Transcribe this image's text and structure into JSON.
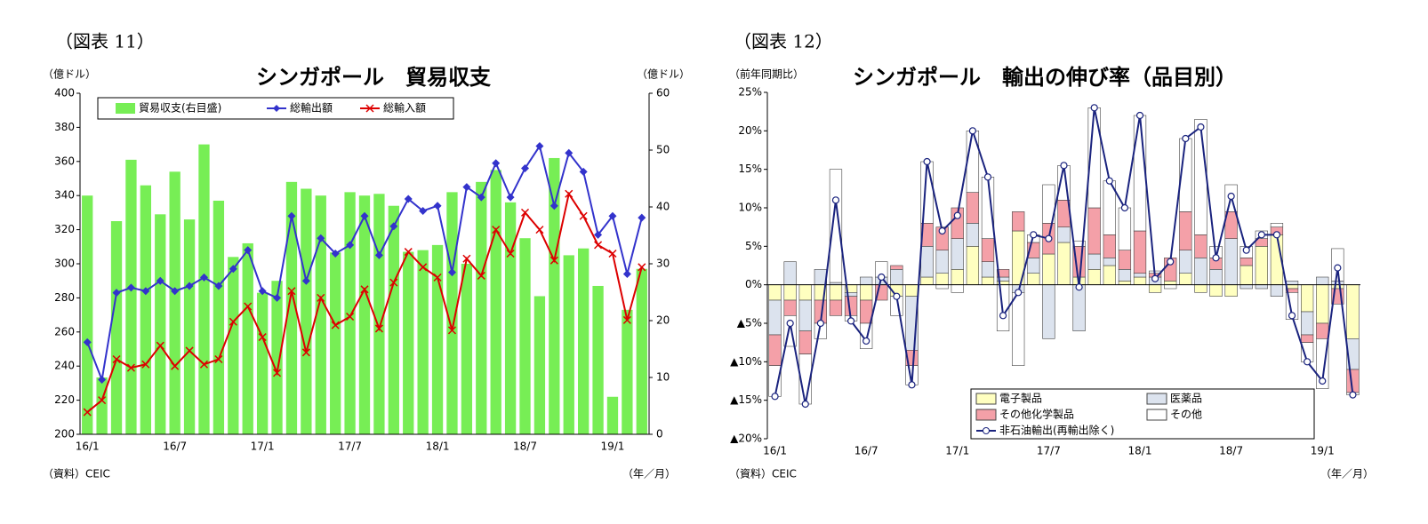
{
  "chart_data": [
    {
      "type": "bar_line",
      "figure_label": "（図表 11）",
      "title": "シンガポール　貿易収支",
      "y_label": "（億ドル）",
      "y2_label": "（億ドル）",
      "x_unit": "（年／月）",
      "source": "（資料）CEIC",
      "categories": [
        "16/1",
        null,
        null,
        null,
        null,
        null,
        "16/7",
        null,
        null,
        null,
        null,
        null,
        "17/1",
        null,
        null,
        null,
        null,
        null,
        "17/7",
        null,
        null,
        null,
        null,
        null,
        "18/1",
        null,
        null,
        null,
        null,
        null,
        "18/7",
        null,
        null,
        null,
        null,
        null,
        "19/1",
        null,
        null
      ],
      "series": [
        {
          "name": "貿易収支(右目盛)",
          "type": "bar",
          "axis": "y2",
          "color": "#77ee55",
          "values": [
            42,
            10,
            37.5,
            48.3,
            43.8,
            38.7,
            46.2,
            37.8,
            51,
            41.1,
            31.2,
            33.6,
            24.9,
            27,
            44.4,
            43.2,
            42,
            32,
            42.6,
            42,
            42.3,
            40.2,
            32.1,
            32.4,
            33.3,
            42.6,
            30,
            44.4,
            46.5,
            40.8,
            34.5,
            24.3,
            48.6,
            31.5,
            32.7,
            26.1,
            6.6,
            21.9,
            29.1
          ]
        },
        {
          "name": "総輸出額",
          "type": "line",
          "color": "#3333cc",
          "marker": "diamond",
          "values": [
            254,
            232,
            283,
            286,
            284,
            290,
            284,
            287,
            292,
            287,
            297,
            308,
            284,
            280,
            328,
            290,
            315,
            306,
            311,
            328,
            305,
            322,
            338,
            331,
            334,
            295,
            345,
            339,
            359,
            339,
            356,
            369,
            334,
            365,
            354,
            317,
            328,
            294,
            327
          ]
        },
        {
          "name": "総輸入額",
          "type": "line",
          "color": "#dd0000",
          "marker": "x",
          "values": [
            213,
            220,
            244,
            239,
            241,
            252,
            240,
            249,
            241,
            244,
            266,
            275,
            257,
            236,
            284,
            248,
            280,
            264,
            269,
            285,
            262,
            289,
            307,
            298,
            292,
            261,
            303,
            293,
            320,
            306,
            330,
            320,
            302,
            341,
            328,
            311,
            306,
            267,
            298
          ]
        }
      ],
      "ylim": [
        200,
        400
      ],
      "yticks": [
        200,
        220,
        240,
        260,
        280,
        300,
        320,
        340,
        360,
        380,
        400
      ],
      "y2lim": [
        0,
        60
      ],
      "y2ticks": [
        0,
        10,
        20,
        30,
        40,
        50,
        60
      ],
      "grid": false,
      "legend": "top-left"
    },
    {
      "type": "stacked_bar_line",
      "figure_label": "（図表 12）",
      "title": "シンガポール　輸出の伸び率（品目別）",
      "y_label": "（前年同期比）",
      "x_unit": "（年／月）",
      "source": "（資料）CEIC",
      "categories": [
        "16/1",
        null,
        null,
        null,
        null,
        null,
        "16/7",
        null,
        null,
        null,
        null,
        null,
        "17/1",
        null,
        null,
        null,
        null,
        null,
        "17/7",
        null,
        null,
        null,
        null,
        null,
        "18/1",
        null,
        null,
        null,
        null,
        null,
        "18/7",
        null,
        null,
        null,
        null,
        null,
        "19/1",
        null,
        null
      ],
      "series": [
        {
          "name": "電子製品",
          "type": "bar",
          "stacked": true,
          "color": "#ffffc0",
          "values": [
            -2,
            -2,
            -2,
            -2,
            -2,
            -1,
            -2,
            0,
            -1.5,
            -1.5,
            1,
            1.5,
            2,
            5,
            1,
            0.5,
            7,
            1.5,
            4,
            5.5,
            1,
            2,
            2.5,
            0.5,
            1,
            -1,
            0.5,
            1.5,
            -1,
            -1.5,
            -1.5,
            2.5,
            5,
            6.5,
            -0.5,
            -3.5,
            -5,
            -0.5,
            -7
          ]
        },
        {
          "name": "医薬品",
          "type": "bar",
          "stacked": true,
          "color": "#dce3ee",
          "values": [
            -4.5,
            3,
            -4,
            2,
            0.3,
            -0.5,
            1,
            1,
            2,
            -7,
            4,
            3,
            4,
            3,
            2,
            0.5,
            -1,
            2,
            -7,
            2,
            -6,
            2,
            1,
            1.5,
            0.5,
            1,
            0,
            3,
            3.5,
            2,
            6,
            -0.5,
            -0.5,
            -1.5,
            0.5,
            -3,
            1,
            0.5,
            -4
          ]
        },
        {
          "name": "その他化学製品",
          "type": "bar",
          "stacked": true,
          "color": "#f4a0a8",
          "values": [
            -4,
            -2,
            -3,
            -3,
            -2,
            -2.5,
            -3,
            -2,
            0.5,
            -2,
            3,
            3,
            4,
            4,
            3,
            1,
            2.5,
            2,
            4,
            3.5,
            4,
            6,
            3,
            2.5,
            5.5,
            0.5,
            3,
            5,
            3,
            1.5,
            3.5,
            1,
            1,
            1,
            -0.5,
            -1,
            -2,
            -2,
            -3
          ]
        },
        {
          "name": "その他",
          "type": "bar",
          "stacked": true,
          "color": "#ffffff",
          "values": [
            -4,
            -4,
            -6.5,
            -2,
            14.7,
            -0.7,
            -3.3,
            2,
            -2.5,
            -2.5,
            8,
            -0.5,
            -1,
            8,
            8,
            -6,
            -9.5,
            1,
            5,
            4.5,
            0.7,
            13,
            7,
            5.5,
            15,
            0.3,
            -0.5,
            9.5,
            15,
            1.5,
            3.5,
            1.5,
            1,
            0.5,
            -3.5,
            -2.5,
            -6.5,
            4.2,
            -0.3
          ]
        },
        {
          "name": "非石油輸出(再輸出除く)",
          "type": "line",
          "color": "#1a237e",
          "marker": "circle",
          "values": [
            -14.5,
            -5,
            -15.5,
            -5,
            11,
            -4.7,
            -7.3,
            1,
            -1.5,
            -13,
            16,
            7,
            9,
            20,
            14,
            -4,
            -1,
            6.5,
            6,
            15.5,
            -0.3,
            23,
            13.5,
            10,
            22,
            0.8,
            3,
            19,
            20.5,
            3.5,
            11.5,
            4.5,
            6.5,
            6.5,
            -4,
            -10,
            -12.5,
            2.2,
            -14.3
          ]
        }
      ],
      "ylim": [
        -20,
        25
      ],
      "yticks": [
        {
          "value": -20,
          "label": "▲20%"
        },
        {
          "value": -15,
          "label": "▲15%"
        },
        {
          "value": -10,
          "label": "▲10%"
        },
        {
          "value": -5,
          "label": "▲5%"
        },
        {
          "value": 0,
          "label": "0%"
        },
        {
          "value": 5,
          "label": "5%"
        },
        {
          "value": 10,
          "label": "10%"
        },
        {
          "value": 15,
          "label": "15%"
        },
        {
          "value": 20,
          "label": "20%"
        },
        {
          "value": 25,
          "label": "25%"
        }
      ],
      "grid": false,
      "legend": "bottom-right"
    }
  ]
}
